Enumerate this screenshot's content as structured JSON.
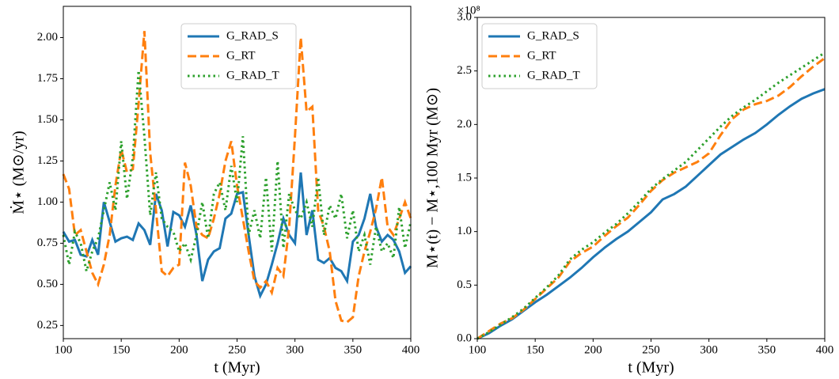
{
  "chart_data": [
    {
      "type": "line",
      "xlabel": "t (Myr)",
      "ylabel": "Ṁ⋆ (M⊙/yr)",
      "legend": "upper center",
      "xlim": [
        100,
        400
      ],
      "xticks": [
        100,
        150,
        200,
        250,
        300,
        350,
        400
      ],
      "ylim": [
        0.17,
        2.19
      ],
      "yticks": [
        0.25,
        {
          "value": 0.5,
          "label": "0.50"
        },
        0.75,
        {
          "value": 1.0,
          "label": "1.00"
        },
        1.25,
        {
          "value": 1.5,
          "label": "1.50"
        },
        1.75,
        {
          "value": 2.0,
          "label": "2.00"
        }
      ],
      "x": [
        100,
        105,
        110,
        115,
        120,
        125,
        130,
        135,
        140,
        145,
        150,
        155,
        160,
        165,
        170,
        175,
        180,
        185,
        190,
        195,
        200,
        205,
        210,
        215,
        220,
        225,
        230,
        235,
        240,
        245,
        250,
        255,
        260,
        265,
        270,
        275,
        280,
        285,
        290,
        295,
        300,
        305,
        310,
        315,
        320,
        325,
        330,
        335,
        340,
        345,
        350,
        355,
        360,
        365,
        370,
        375,
        380,
        385,
        390,
        395,
        400
      ],
      "series": [
        {
          "name": "G_RAD_S",
          "color": "#1f77b4",
          "dash": "solid",
          "values": [
            0.82,
            0.76,
            0.77,
            0.68,
            0.67,
            0.77,
            0.68,
            1.0,
            0.88,
            0.76,
            0.78,
            0.79,
            0.77,
            0.87,
            0.83,
            0.74,
            1.05,
            0.95,
            0.73,
            0.94,
            0.92,
            0.85,
            0.98,
            0.8,
            0.52,
            0.65,
            0.7,
            0.72,
            0.9,
            0.93,
            1.05,
            1.06,
            0.8,
            0.55,
            0.43,
            0.5,
            0.62,
            0.75,
            0.9,
            0.8,
            0.75,
            1.18,
            0.8,
            0.95,
            0.65,
            0.63,
            0.66,
            0.6,
            0.58,
            0.52,
            0.76,
            0.8,
            0.9,
            1.05,
            0.85,
            0.76,
            0.8,
            0.77,
            0.7,
            0.57,
            0.61
          ]
        },
        {
          "name": "G_RT",
          "color": "#ff7f0e",
          "dash": "dashed",
          "values": [
            1.17,
            1.08,
            0.8,
            0.83,
            0.7,
            0.57,
            0.5,
            0.62,
            0.8,
            1.1,
            1.32,
            1.18,
            1.2,
            1.6,
            2.04,
            1.3,
            0.95,
            0.58,
            0.55,
            0.6,
            0.62,
            1.24,
            1.1,
            0.85,
            0.8,
            0.78,
            0.9,
            1.05,
            1.25,
            1.37,
            1.1,
            0.9,
            0.7,
            0.52,
            0.48,
            0.52,
            0.45,
            0.6,
            0.55,
            0.85,
            1.4,
            2.0,
            1.55,
            1.58,
            0.95,
            0.85,
            0.7,
            0.4,
            0.28,
            0.27,
            0.3,
            0.55,
            0.7,
            0.82,
            0.96,
            1.15,
            0.85,
            0.8,
            0.9,
            1.0,
            0.9
          ]
        },
        {
          "name": "G_RAD_T",
          "color": "#2ca02c",
          "dash": "dotted",
          "values": [
            0.8,
            0.62,
            0.82,
            0.75,
            0.58,
            0.7,
            0.78,
            0.95,
            1.12,
            0.95,
            1.37,
            1.02,
            1.27,
            1.8,
            1.4,
            0.92,
            1.18,
            0.9,
            0.85,
            0.82,
            0.7,
            0.75,
            0.65,
            0.8,
            1.0,
            0.78,
            1.05,
            1.12,
            0.95,
            1.22,
            1.0,
            1.4,
            0.8,
            0.95,
            0.78,
            1.15,
            0.7,
            1.25,
            0.72,
            1.05,
            0.95,
            0.9,
            1.0,
            0.85,
            1.15,
            0.8,
            0.98,
            0.9,
            1.05,
            0.78,
            0.95,
            0.7,
            0.8,
            0.62,
            0.85,
            0.7,
            0.75,
            0.66,
            0.97,
            0.72,
            0.88
          ]
        }
      ]
    },
    {
      "type": "line",
      "xlabel": "t (Myr)",
      "ylabel": "M⋆(t) − M⋆,100 Myr (M⊙)",
      "ymultiplier": "×10⁸",
      "legend": "upper left",
      "xlim": [
        100,
        400
      ],
      "xticks": [
        100,
        150,
        200,
        250,
        300,
        350,
        400
      ],
      "ylim": [
        0,
        3.0
      ],
      "yticks": [
        {
          "value": 0,
          "label": "0.0"
        },
        0.5,
        {
          "value": 1.0,
          "label": "1.0"
        },
        1.5,
        {
          "value": 2.0,
          "label": "2.0"
        },
        2.5,
        {
          "value": 3.0,
          "label": "3.0"
        }
      ],
      "x": [
        100,
        110,
        120,
        130,
        140,
        150,
        160,
        170,
        180,
        190,
        200,
        210,
        220,
        230,
        240,
        250,
        260,
        270,
        280,
        290,
        300,
        310,
        320,
        330,
        340,
        350,
        360,
        370,
        380,
        390,
        400
      ],
      "series": [
        {
          "name": "G_RAD_S",
          "color": "#1f77b4",
          "dash": "solid",
          "values": [
            0,
            0.05,
            0.12,
            0.18,
            0.26,
            0.34,
            0.41,
            0.49,
            0.57,
            0.66,
            0.76,
            0.85,
            0.93,
            1.0,
            1.09,
            1.18,
            1.3,
            1.35,
            1.42,
            1.52,
            1.62,
            1.72,
            1.79,
            1.86,
            1.92,
            2.0,
            2.09,
            2.17,
            2.24,
            2.29,
            2.33
          ]
        },
        {
          "name": "G_RT",
          "color": "#ff7f0e",
          "dash": "dashed",
          "values": [
            0,
            0.07,
            0.14,
            0.19,
            0.27,
            0.37,
            0.47,
            0.57,
            0.72,
            0.8,
            0.86,
            0.96,
            1.05,
            1.13,
            1.25,
            1.38,
            1.48,
            1.55,
            1.6,
            1.65,
            1.73,
            1.9,
            2.05,
            2.14,
            2.19,
            2.22,
            2.27,
            2.35,
            2.45,
            2.54,
            2.62
          ]
        },
        {
          "name": "G_RAD_T",
          "color": "#2ca02c",
          "dash": "dotted",
          "values": [
            0,
            0.06,
            0.13,
            0.2,
            0.28,
            0.38,
            0.48,
            0.59,
            0.74,
            0.83,
            0.9,
            0.99,
            1.07,
            1.17,
            1.28,
            1.4,
            1.49,
            1.57,
            1.65,
            1.76,
            1.87,
            1.98,
            2.08,
            2.16,
            2.23,
            2.31,
            2.39,
            2.46,
            2.53,
            2.6,
            2.67
          ]
        }
      ]
    }
  ]
}
